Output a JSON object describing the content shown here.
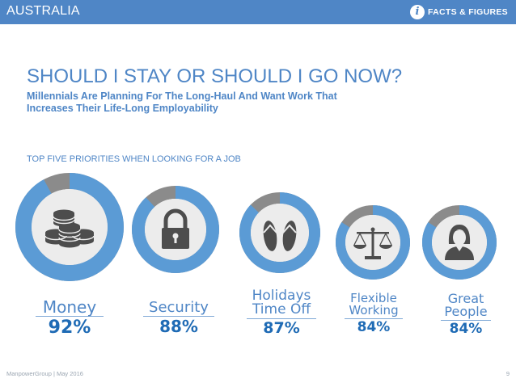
{
  "header": {
    "region": "AUSTRALIA",
    "brand_label": "FACTS & FIGURES",
    "brand_icon": "info-icon",
    "bar_color": "#4f86c6"
  },
  "headline": "SHOULD I STAY OR SHOULD I GO NOW?",
  "subheadline": {
    "line1": "Millennials Are Planning For The Long-Haul And Want Work That",
    "line2": "Increases Their Life-Long Employability"
  },
  "section_title": "TOP FIVE PRIORITIES WHEN LOOKING FOR A JOB",
  "priorities": [
    {
      "lines": [
        "Money"
      ],
      "percent": "92%",
      "value": 92,
      "icon": "coins-icon"
    },
    {
      "lines": [
        "Security"
      ],
      "percent": "88%",
      "value": 88,
      "icon": "padlock-icon"
    },
    {
      "lines": [
        "Holidays",
        "Time Off"
      ],
      "percent": "87%",
      "value": 87,
      "icon": "flip-flops-icon"
    },
    {
      "lines": [
        "Flexible",
        "Working"
      ],
      "percent": "84%",
      "value": 84,
      "icon": "balance-scale-icon"
    },
    {
      "lines": [
        "Great",
        "People"
      ],
      "percent": "84%",
      "value": 84,
      "icon": "person-icon"
    }
  ],
  "colors": {
    "ring_fill": "#5b9bd5",
    "ring_rest": "#8b8b8b",
    "inner": "#ececec",
    "icon": "#4d4d4d",
    "text": "#4f86c6",
    "percent": "#1f6bb5"
  },
  "footer": {
    "left": "ManpowerGroup | May 2016",
    "page": "9"
  }
}
